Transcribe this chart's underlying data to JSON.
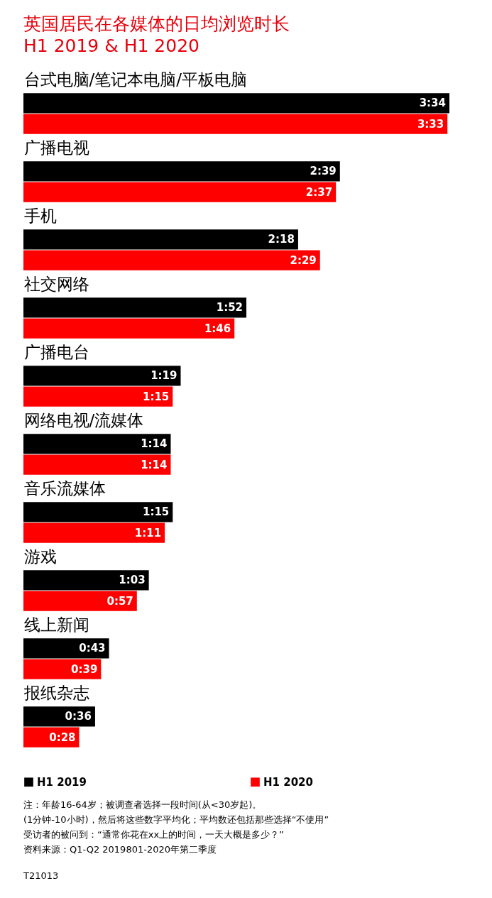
{
  "chart_data": {
    "type": "bar",
    "orientation": "horizontal",
    "title": "英国居民在各媒体的日均浏览时长",
    "subtitle": "H1 2019 & H1 2020",
    "categories": [
      "台式电脑/笔记本电脑/平板电脑",
      "广播电视",
      "手机",
      "社交网络",
      "广播电台",
      "网络电视/流媒体",
      "音乐流媒体",
      "游戏",
      "线上新闻",
      "报纸杂志"
    ],
    "series": [
      {
        "name": "H1 2019",
        "color": "#000000",
        "values": [
          214,
          159,
          138,
          112,
          79,
          74,
          75,
          63,
          43,
          36
        ],
        "value_labels": [
          "3:34",
          "2:39",
          "2:18",
          "1:52",
          "1:19",
          "1:14",
          "1:15",
          "1:03",
          "0:43",
          "0:36"
        ]
      },
      {
        "name": "H1 2020",
        "color": "#ff0000",
        "values": [
          213,
          157,
          149,
          106,
          75,
          74,
          71,
          57,
          39,
          28
        ],
        "value_labels": [
          "3:33",
          "2:37",
          "2:29",
          "1:46",
          "1:15",
          "1:14",
          "1:11",
          "0:57",
          "0:39",
          "0:28"
        ]
      }
    ],
    "legend": "bottom",
    "grid": false,
    "annotations": [
      "注：年龄16-64岁；被调查者选择一段时间(从<30岁起)。",
      "(1分钟-10小时)，然后将这些数字平均化；平均数还包括那些选择“不使用”",
      "受访者的被问到：“通常你花在xx上的时间，一天大概是多少？”",
      "资料来源：Q1-Q2 2019801-2020年第二季度",
      "T21013"
    ]
  }
}
